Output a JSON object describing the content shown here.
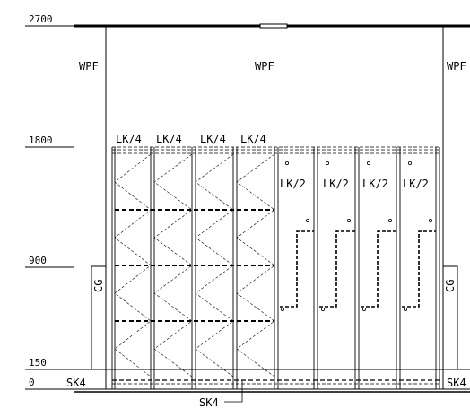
{
  "levels": {
    "l2700": "2700",
    "l1800": "1800",
    "l900": "900",
    "l150": "150",
    "l0": "0"
  },
  "walls": {
    "left": "WPF",
    "center": "WPF",
    "right": "WPF"
  },
  "cg": {
    "left": "CG",
    "right": "CG"
  },
  "sk4": {
    "left": "SK4",
    "right": "SK4",
    "bottom": "SK4"
  },
  "lockers_quarter": [
    "LK/4",
    "LK/4",
    "LK/4",
    "LK/4"
  ],
  "lockers_half": [
    "LK/2",
    "LK/2",
    "LK/2",
    "LK/2"
  ]
}
